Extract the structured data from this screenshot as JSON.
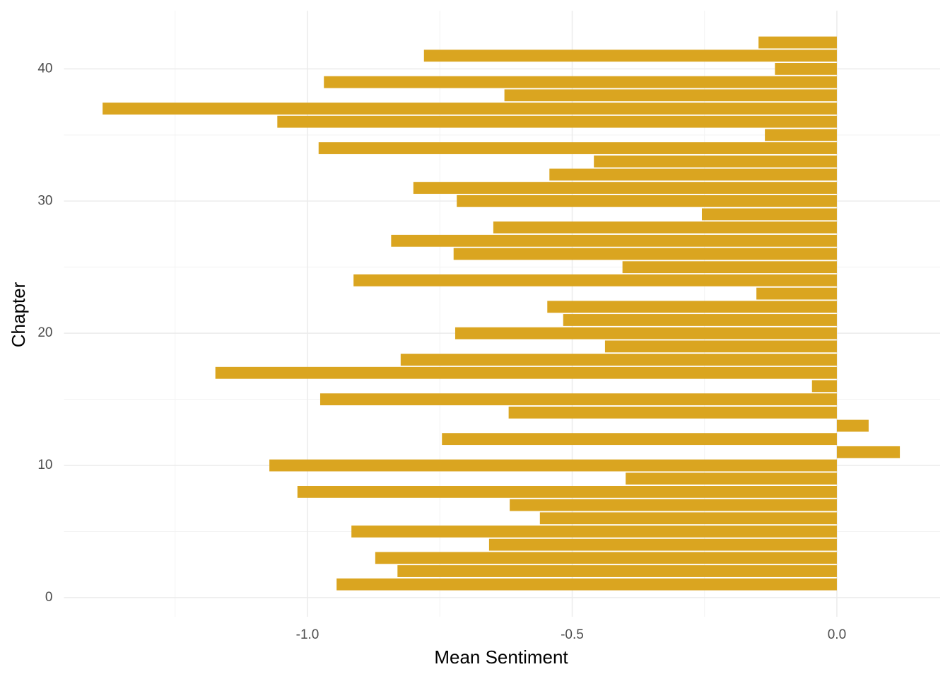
{
  "chart_data": {
    "type": "barh",
    "x_label": "Mean Sentiment",
    "y_label": "Chapter",
    "y": [
      1,
      2,
      3,
      4,
      5,
      6,
      7,
      8,
      9,
      10,
      11,
      12,
      13,
      14,
      15,
      16,
      17,
      18,
      19,
      20,
      21,
      22,
      23,
      24,
      25,
      26,
      27,
      28,
      29,
      30,
      31,
      32,
      33,
      34,
      35,
      36,
      37,
      38,
      39,
      40,
      41,
      42
    ],
    "values": [
      -0.945,
      -0.83,
      -0.872,
      -0.657,
      -0.917,
      -0.561,
      -0.618,
      -1.019,
      -0.399,
      -1.072,
      0.119,
      -0.746,
      0.06,
      -0.62,
      -0.976,
      -0.047,
      -1.174,
      -0.824,
      -0.438,
      -0.721,
      -0.517,
      -0.547,
      -0.152,
      -0.913,
      -0.405,
      -0.724,
      -0.842,
      -0.649,
      -0.255,
      -0.718,
      -0.8,
      -0.543,
      -0.459,
      -0.979,
      -0.136,
      -1.057,
      -1.387,
      -0.628,
      -0.969,
      -0.117,
      -0.78,
      -0.148
    ],
    "color": "#daa520",
    "xlim": [
      -1.46,
      0.195
    ],
    "ylim": [
      -1.45,
      44.4
    ],
    "xticks": [
      {
        "value": -1.0,
        "label": "-1.0"
      },
      {
        "value": -0.5,
        "label": "-0.5"
      },
      {
        "value": 0.0,
        "label": "0.0"
      }
    ],
    "yticks": [
      0,
      10,
      20,
      30,
      40
    ],
    "grid": true,
    "minor_grid": true
  }
}
